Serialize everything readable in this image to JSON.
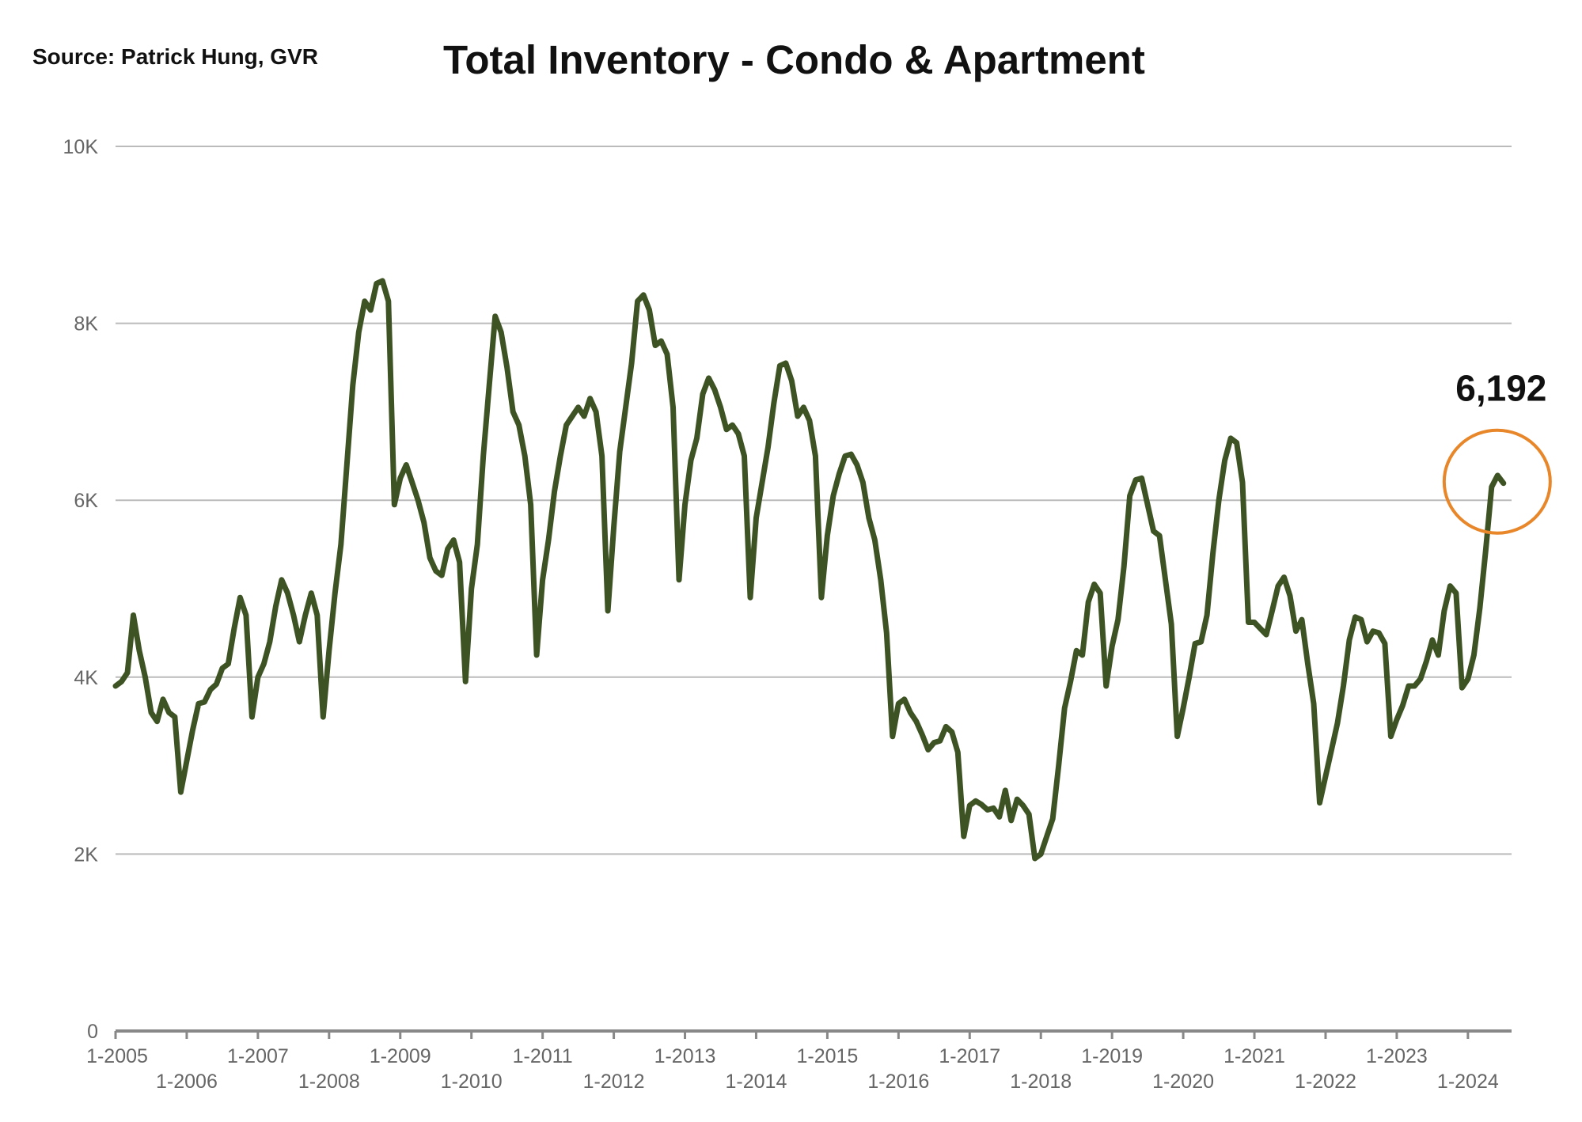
{
  "header": {
    "source": "Source:  Patrick Hung, GVR",
    "title": "Total Inventory - Condo &  Apartment"
  },
  "chart_data": {
    "type": "line",
    "title": "Total Inventory - Condo &  Apartment",
    "xlabel": "",
    "ylabel": "",
    "ylim": [
      0,
      10000
    ],
    "y_ticks": [
      0,
      2000,
      4000,
      6000,
      8000,
      10000
    ],
    "y_tick_labels": [
      "0",
      "2K",
      "4K",
      "6K",
      "8K",
      "10K"
    ],
    "grid": true,
    "x_range": [
      "1-2005",
      "9-2024"
    ],
    "x_tick_labels": [
      "1-2005",
      "1-2006",
      "1-2007",
      "1-2008",
      "1-2009",
      "1-2010",
      "1-2011",
      "1-2012",
      "1-2013",
      "1-2014",
      "1-2015",
      "1-2016",
      "1-2017",
      "1-2018",
      "1-2019",
      "1-2020",
      "1-2021",
      "1-2022",
      "1-2023",
      "1-2024"
    ],
    "colors": {
      "line": "#3e5323",
      "grid": "#bbbbbb",
      "axis": "#888888",
      "callout": "#e8862a"
    },
    "series": [
      {
        "points": [
          [
            "1-2005",
            3900
          ],
          [
            "2-2005",
            3950
          ],
          [
            "3-2005",
            4050
          ],
          [
            "4-2005",
            4700
          ],
          [
            "5-2005",
            4300
          ],
          [
            "6-2005",
            4000
          ],
          [
            "7-2005",
            3600
          ],
          [
            "8-2005",
            3500
          ],
          [
            "9-2005",
            3750
          ],
          [
            "10-2005",
            3600
          ],
          [
            "11-2005",
            3550
          ],
          [
            "12-2005",
            2700
          ],
          [
            "1-2006",
            3050
          ],
          [
            "2-2006",
            3400
          ],
          [
            "3-2006",
            3700
          ],
          [
            "4-2006",
            3720
          ],
          [
            "5-2006",
            3860
          ],
          [
            "6-2006",
            3920
          ],
          [
            "7-2006",
            4100
          ],
          [
            "8-2006",
            4150
          ],
          [
            "9-2006",
            4550
          ],
          [
            "10-2006",
            4900
          ],
          [
            "11-2006",
            4700
          ],
          [
            "12-2006",
            3550
          ],
          [
            "1-2007",
            4000
          ],
          [
            "2-2007",
            4150
          ],
          [
            "3-2007",
            4400
          ],
          [
            "4-2007",
            4800
          ],
          [
            "5-2007",
            5100
          ],
          [
            "6-2007",
            4950
          ],
          [
            "7-2007",
            4700
          ],
          [
            "8-2007",
            4400
          ],
          [
            "9-2007",
            4700
          ],
          [
            "10-2007",
            4950
          ],
          [
            "11-2007",
            4700
          ],
          [
            "12-2007",
            3550
          ],
          [
            "1-2008",
            4300
          ],
          [
            "2-2008",
            4950
          ],
          [
            "3-2008",
            5500
          ],
          [
            "4-2008",
            6400
          ],
          [
            "5-2008",
            7300
          ],
          [
            "6-2008",
            7900
          ],
          [
            "7-2008",
            8250
          ],
          [
            "8-2008",
            8150
          ],
          [
            "9-2008",
            8450
          ],
          [
            "10-2008",
            8480
          ],
          [
            "11-2008",
            8250
          ],
          [
            "12-2008",
            5950
          ],
          [
            "1-2009",
            6250
          ],
          [
            "2-2009",
            6400
          ],
          [
            "3-2009",
            6200
          ],
          [
            "4-2009",
            6000
          ],
          [
            "5-2009",
            5750
          ],
          [
            "6-2009",
            5350
          ],
          [
            "7-2009",
            5200
          ],
          [
            "8-2009",
            5150
          ],
          [
            "9-2009",
            5450
          ],
          [
            "10-2009",
            5550
          ],
          [
            "11-2009",
            5300
          ],
          [
            "12-2009",
            3950
          ],
          [
            "1-2010",
            5000
          ],
          [
            "2-2010",
            5500
          ],
          [
            "3-2010",
            6500
          ],
          [
            "4-2010",
            7300
          ],
          [
            "5-2010",
            8080
          ],
          [
            "6-2010",
            7900
          ],
          [
            "7-2010",
            7500
          ],
          [
            "8-2010",
            7000
          ],
          [
            "9-2010",
            6850
          ],
          [
            "10-2010",
            6500
          ],
          [
            "11-2010",
            5950
          ],
          [
            "12-2010",
            4250
          ],
          [
            "1-2011",
            5100
          ],
          [
            "2-2011",
            5550
          ],
          [
            "3-2011",
            6100
          ],
          [
            "4-2011",
            6500
          ],
          [
            "5-2011",
            6850
          ],
          [
            "6-2011",
            6950
          ],
          [
            "7-2011",
            7050
          ],
          [
            "8-2011",
            6950
          ],
          [
            "9-2011",
            7150
          ],
          [
            "10-2011",
            7000
          ],
          [
            "11-2011",
            6500
          ],
          [
            "12-2011",
            4750
          ],
          [
            "1-2012",
            5700
          ],
          [
            "2-2012",
            6550
          ],
          [
            "3-2012",
            7050
          ],
          [
            "4-2012",
            7550
          ],
          [
            "5-2012",
            8250
          ],
          [
            "6-2012",
            8320
          ],
          [
            "7-2012",
            8150
          ],
          [
            "8-2012",
            7750
          ],
          [
            "9-2012",
            7800
          ],
          [
            "10-2012",
            7650
          ],
          [
            "11-2012",
            7050
          ],
          [
            "12-2012",
            5100
          ],
          [
            "1-2013",
            5950
          ],
          [
            "2-2013",
            6450
          ],
          [
            "3-2013",
            6700
          ],
          [
            "4-2013",
            7200
          ],
          [
            "5-2013",
            7380
          ],
          [
            "6-2013",
            7250
          ],
          [
            "7-2013",
            7050
          ],
          [
            "8-2013",
            6800
          ],
          [
            "9-2013",
            6850
          ],
          [
            "10-2013",
            6750
          ],
          [
            "11-2013",
            6500
          ],
          [
            "12-2013",
            4900
          ],
          [
            "1-2014",
            5800
          ],
          [
            "2-2014",
            6200
          ],
          [
            "3-2014",
            6600
          ],
          [
            "4-2014",
            7100
          ],
          [
            "5-2014",
            7520
          ],
          [
            "6-2014",
            7550
          ],
          [
            "7-2014",
            7350
          ],
          [
            "8-2014",
            6950
          ],
          [
            "9-2014",
            7050
          ],
          [
            "10-2014",
            6900
          ],
          [
            "11-2014",
            6500
          ],
          [
            "12-2014",
            4900
          ],
          [
            "1-2015",
            5600
          ],
          [
            "2-2015",
            6050
          ],
          [
            "3-2015",
            6300
          ],
          [
            "4-2015",
            6500
          ],
          [
            "5-2015",
            6520
          ],
          [
            "6-2015",
            6400
          ],
          [
            "7-2015",
            6200
          ],
          [
            "8-2015",
            5800
          ],
          [
            "9-2015",
            5550
          ],
          [
            "10-2015",
            5100
          ],
          [
            "11-2015",
            4500
          ],
          [
            "12-2015",
            3330
          ],
          [
            "1-2016",
            3700
          ],
          [
            "2-2016",
            3750
          ],
          [
            "3-2016",
            3600
          ],
          [
            "4-2016",
            3500
          ],
          [
            "5-2016",
            3350
          ],
          [
            "6-2016",
            3180
          ],
          [
            "7-2016",
            3260
          ],
          [
            "8-2016",
            3280
          ],
          [
            "9-2016",
            3440
          ],
          [
            "10-2016",
            3380
          ],
          [
            "11-2016",
            3150
          ],
          [
            "12-2016",
            2200
          ],
          [
            "1-2017",
            2550
          ],
          [
            "2-2017",
            2600
          ],
          [
            "3-2017",
            2560
          ],
          [
            "4-2017",
            2500
          ],
          [
            "5-2017",
            2520
          ],
          [
            "6-2017",
            2420
          ],
          [
            "7-2017",
            2720
          ],
          [
            "8-2017",
            2380
          ],
          [
            "9-2017",
            2620
          ],
          [
            "10-2017",
            2550
          ],
          [
            "11-2017",
            2450
          ],
          [
            "12-2017",
            1950
          ],
          [
            "1-2018",
            2000
          ],
          [
            "2-2018",
            2200
          ],
          [
            "3-2018",
            2400
          ],
          [
            "4-2018",
            3000
          ],
          [
            "5-2018",
            3650
          ],
          [
            "6-2018",
            3950
          ],
          [
            "7-2018",
            4300
          ],
          [
            "8-2018",
            4250
          ],
          [
            "9-2018",
            4850
          ],
          [
            "10-2018",
            5050
          ],
          [
            "11-2018",
            4950
          ],
          [
            "12-2018",
            3900
          ],
          [
            "1-2019",
            4350
          ],
          [
            "2-2019",
            4650
          ],
          [
            "3-2019",
            5250
          ],
          [
            "4-2019",
            6050
          ],
          [
            "5-2019",
            6230
          ],
          [
            "6-2019",
            6250
          ],
          [
            "7-2019",
            5950
          ],
          [
            "8-2019",
            5650
          ],
          [
            "9-2019",
            5600
          ],
          [
            "10-2019",
            5100
          ],
          [
            "11-2019",
            4600
          ],
          [
            "12-2019",
            3330
          ],
          [
            "1-2020",
            3650
          ],
          [
            "2-2020",
            4000
          ],
          [
            "3-2020",
            4380
          ],
          [
            "4-2020",
            4400
          ],
          [
            "5-2020",
            4700
          ],
          [
            "6-2020",
            5400
          ],
          [
            "7-2020",
            6000
          ],
          [
            "8-2020",
            6450
          ],
          [
            "9-2020",
            6700
          ],
          [
            "10-2020",
            6650
          ],
          [
            "11-2020",
            6200
          ],
          [
            "12-2020",
            4620
          ],
          [
            "1-2021",
            4620
          ],
          [
            "2-2021",
            4550
          ],
          [
            "3-2021",
            4480
          ],
          [
            "4-2021",
            4750
          ],
          [
            "5-2021",
            5030
          ],
          [
            "6-2021",
            5130
          ],
          [
            "7-2021",
            4920
          ],
          [
            "8-2021",
            4520
          ],
          [
            "9-2021",
            4650
          ],
          [
            "10-2021",
            4150
          ],
          [
            "11-2021",
            3700
          ],
          [
            "12-2021",
            2580
          ],
          [
            "1-2022",
            2880
          ],
          [
            "2-2022",
            3180
          ],
          [
            "3-2022",
            3480
          ],
          [
            "4-2022",
            3900
          ],
          [
            "5-2022",
            4420
          ],
          [
            "6-2022",
            4680
          ],
          [
            "7-2022",
            4650
          ],
          [
            "8-2022",
            4400
          ],
          [
            "9-2022",
            4520
          ],
          [
            "10-2022",
            4500
          ],
          [
            "11-2022",
            4380
          ],
          [
            "12-2022",
            3330
          ],
          [
            "1-2023",
            3520
          ],
          [
            "2-2023",
            3680
          ],
          [
            "3-2023",
            3900
          ],
          [
            "4-2023",
            3900
          ],
          [
            "5-2023",
            3980
          ],
          [
            "6-2023",
            4180
          ],
          [
            "7-2023",
            4420
          ],
          [
            "8-2023",
            4250
          ],
          [
            "9-2023",
            4750
          ],
          [
            "10-2023",
            5030
          ],
          [
            "11-2023",
            4950
          ],
          [
            "12-2023",
            3880
          ],
          [
            "1-2024",
            3980
          ],
          [
            "2-2024",
            4250
          ],
          [
            "3-2024",
            4780
          ],
          [
            "4-2024",
            5430
          ],
          [
            "5-2024",
            6150
          ],
          [
            "6-2024",
            6280
          ],
          [
            "7-2024",
            6192
          ]
        ]
      }
    ],
    "annotations": [
      {
        "text": "6,192",
        "at": "7-2024",
        "value": 6192,
        "marker": "circle"
      }
    ]
  }
}
